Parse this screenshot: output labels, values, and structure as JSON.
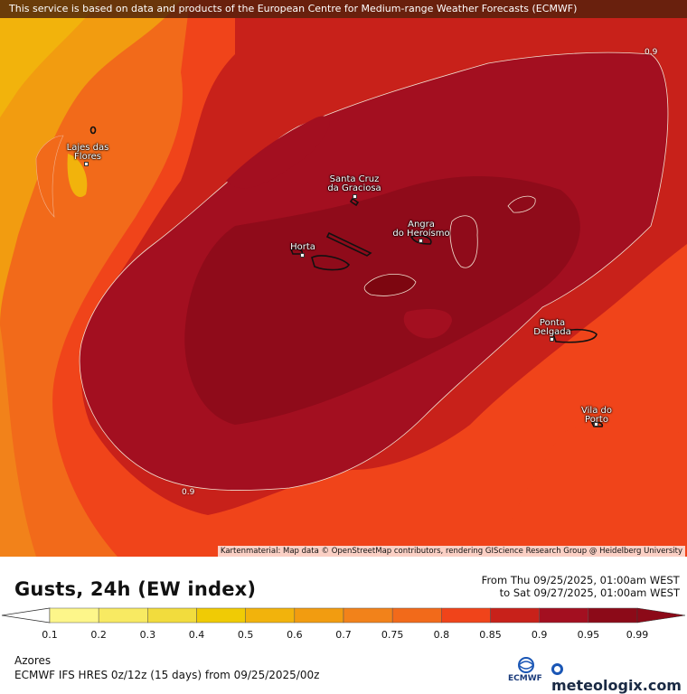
{
  "banner": "This service is based on data and products of the European Centre for Medium-range Weather Forecasts (ECMWF)",
  "attribution": "Kartenmaterial: Map data © OpenStreetMap contributors, rendering GIScience Research Group @ Heidelberg University",
  "cities": {
    "lajes": [
      "Lajes das",
      "Flores"
    ],
    "santacruz": [
      "Santa Cruz",
      "da Graciosa"
    ],
    "angra": [
      "Angra",
      "do Heroísmo"
    ],
    "horta": [
      "Horta"
    ],
    "ponta": [
      "Ponta",
      "Delgada"
    ],
    "vila": [
      "Vila do",
      "Porto"
    ]
  },
  "contour_labels": {
    "top_right": "0.9",
    "bottom": "0.9"
  },
  "title": "Gusts, 24h (EW index)",
  "date_from": "From Thu 09/25/2025, 01:00am WEST",
  "date_to": "to Sat 09/27/2025, 01:00am WEST",
  "scale": {
    "ticks": [
      "0.1",
      "0.2",
      "0.3",
      "0.4",
      "0.5",
      "0.6",
      "0.7",
      "0.75",
      "0.8",
      "0.85",
      "0.9",
      "0.95",
      "0.99"
    ],
    "colors": [
      "#fdf68a",
      "#f8ea62",
      "#f2dc3d",
      "#f0cb05",
      "#f2b30c",
      "#f29c10",
      "#f2821a",
      "#f26a1a",
      "#f0441a",
      "#c8211a",
      "#a30f20",
      "#8c0a18"
    ]
  },
  "region": "Azores",
  "model": "ECMWF IFS HRES 0z/12z (15 days) from  09/25/2025/00z",
  "ecmwf_label": "ECMWF",
  "brand": "meteologix.com"
}
